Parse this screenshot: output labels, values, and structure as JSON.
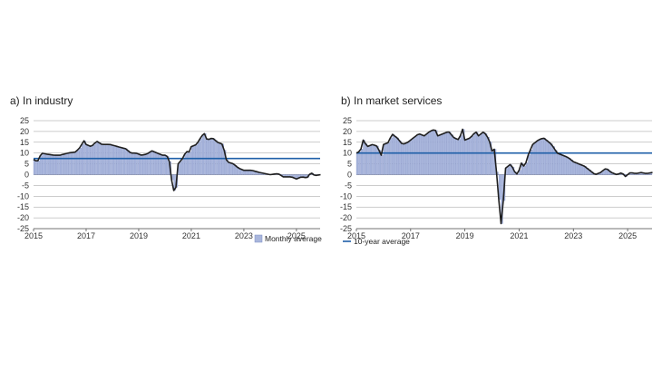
{
  "colors": {
    "bars": "#a9b6dc",
    "bar_border": "#7f8fc6",
    "line": "#1f1f1f",
    "avg": "#1f5fa8",
    "grid": "#9a9a9a"
  },
  "chart_data": [
    {
      "type": "bar",
      "panel": "a",
      "title": "a)  In industry",
      "ylim": [
        -25,
        25
      ],
      "yticks": [
        25,
        20,
        15,
        10,
        5,
        0,
        -5,
        -10,
        -15,
        -20,
        -25
      ],
      "xrange": [
        2015,
        2025.9
      ],
      "xticks": [
        "2015",
        "2017",
        "2019",
        "2021",
        "2023",
        "2025"
      ],
      "legend": [
        "Monthly average"
      ],
      "avg_value": 7.5,
      "series_keypoints": [
        [
          2015,
          7
        ],
        [
          2015.15,
          6
        ],
        [
          2015.3,
          10
        ],
        [
          2015.5,
          9.5
        ],
        [
          2015.8,
          9
        ],
        [
          2016.0,
          9
        ],
        [
          2016.3,
          10
        ],
        [
          2016.6,
          10.5
        ],
        [
          2016.8,
          13
        ],
        [
          2016.9,
          16
        ],
        [
          2017.0,
          14
        ],
        [
          2017.2,
          13
        ],
        [
          2017.4,
          15.5
        ],
        [
          2017.6,
          14
        ],
        [
          2017.9,
          14
        ],
        [
          2018.2,
          13
        ],
        [
          2018.5,
          12
        ],
        [
          2018.7,
          10
        ],
        [
          2018.9,
          10
        ],
        [
          2019.1,
          9
        ],
        [
          2019.3,
          9.5
        ],
        [
          2019.5,
          11
        ],
        [
          2019.7,
          10
        ],
        [
          2019.9,
          9
        ],
        [
          2020.0,
          9
        ],
        [
          2020.15,
          8
        ],
        [
          2020.2,
          2
        ],
        [
          2020.3,
          -7
        ],
        [
          2020.4,
          -8
        ],
        [
          2020.5,
          5
        ],
        [
          2020.7,
          8
        ],
        [
          2020.8,
          11
        ],
        [
          2020.9,
          10
        ],
        [
          2021.0,
          13
        ],
        [
          2021.2,
          14
        ],
        [
          2021.4,
          18
        ],
        [
          2021.5,
          19
        ],
        [
          2021.6,
          16
        ],
        [
          2021.8,
          17
        ],
        [
          2022.0,
          15
        ],
        [
          2022.2,
          14
        ],
        [
          2022.35,
          6
        ],
        [
          2022.6,
          5
        ],
        [
          2022.8,
          3
        ],
        [
          2023.0,
          2
        ],
        [
          2023.3,
          2
        ],
        [
          2023.6,
          1
        ],
        [
          2024.0,
          0
        ],
        [
          2024.3,
          0.5
        ],
        [
          2024.5,
          -1
        ],
        [
          2024.8,
          -1
        ],
        [
          2025.0,
          -2
        ],
        [
          2025.2,
          -1
        ],
        [
          2025.4,
          -1.5
        ],
        [
          2025.55,
          1
        ],
        [
          2025.7,
          -0.5
        ],
        [
          2025.9,
          0
        ]
      ]
    },
    {
      "type": "bar",
      "panel": "b",
      "title": "b)  In market services",
      "ylim": [
        -25,
        25
      ],
      "yticks": [
        25,
        20,
        15,
        10,
        5,
        0,
        -5,
        -10,
        -15,
        -20,
        -25
      ],
      "xrange": [
        2015,
        2025.9
      ],
      "xticks": [
        "2015",
        "2017",
        "2019",
        "2021",
        "2023",
        "2025"
      ],
      "legend": [
        "10-year average"
      ],
      "avg_value": 10,
      "series_keypoints": [
        [
          2015,
          10
        ],
        [
          2015.15,
          11
        ],
        [
          2015.25,
          16
        ],
        [
          2015.4,
          13
        ],
        [
          2015.6,
          14
        ],
        [
          2015.8,
          13
        ],
        [
          2015.9,
          8
        ],
        [
          2016.0,
          14
        ],
        [
          2016.2,
          15
        ],
        [
          2016.3,
          19
        ],
        [
          2016.5,
          17
        ],
        [
          2016.7,
          14
        ],
        [
          2016.9,
          15
        ],
        [
          2017.1,
          17
        ],
        [
          2017.3,
          19
        ],
        [
          2017.5,
          18
        ],
        [
          2017.7,
          20
        ],
        [
          2017.9,
          21
        ],
        [
          2018.0,
          18
        ],
        [
          2018.2,
          19
        ],
        [
          2018.4,
          20
        ],
        [
          2018.6,
          17
        ],
        [
          2018.8,
          16
        ],
        [
          2018.9,
          22
        ],
        [
          2019.0,
          16
        ],
        [
          2019.2,
          17
        ],
        [
          2019.4,
          20
        ],
        [
          2019.5,
          18
        ],
        [
          2019.7,
          20
        ],
        [
          2019.9,
          16
        ],
        [
          2020.0,
          11
        ],
        [
          2020.05,
          16
        ],
        [
          2020.2,
          -3
        ],
        [
          2020.3,
          -20
        ],
        [
          2020.35,
          -24
        ],
        [
          2020.5,
          3
        ],
        [
          2020.7,
          5
        ],
        [
          2020.8,
          2
        ],
        [
          2020.9,
          0
        ],
        [
          2021.0,
          2
        ],
        [
          2021.1,
          6
        ],
        [
          2021.2,
          3
        ],
        [
          2021.3,
          8
        ],
        [
          2021.5,
          14
        ],
        [
          2021.7,
          16
        ],
        [
          2021.9,
          17
        ],
        [
          2022.0,
          16
        ],
        [
          2022.2,
          14
        ],
        [
          2022.4,
          10
        ],
        [
          2022.6,
          9
        ],
        [
          2022.8,
          8
        ],
        [
          2023.0,
          6
        ],
        [
          2023.2,
          5
        ],
        [
          2023.4,
          4
        ],
        [
          2023.6,
          2
        ],
        [
          2023.8,
          0
        ],
        [
          2024.0,
          1
        ],
        [
          2024.2,
          3
        ],
        [
          2024.4,
          1
        ],
        [
          2024.6,
          0
        ],
        [
          2024.8,
          1
        ],
        [
          2024.9,
          -1
        ],
        [
          2025.1,
          1
        ],
        [
          2025.3,
          0.5
        ],
        [
          2025.5,
          1
        ],
        [
          2025.7,
          0.5
        ],
        [
          2025.9,
          1
        ]
      ]
    }
  ]
}
